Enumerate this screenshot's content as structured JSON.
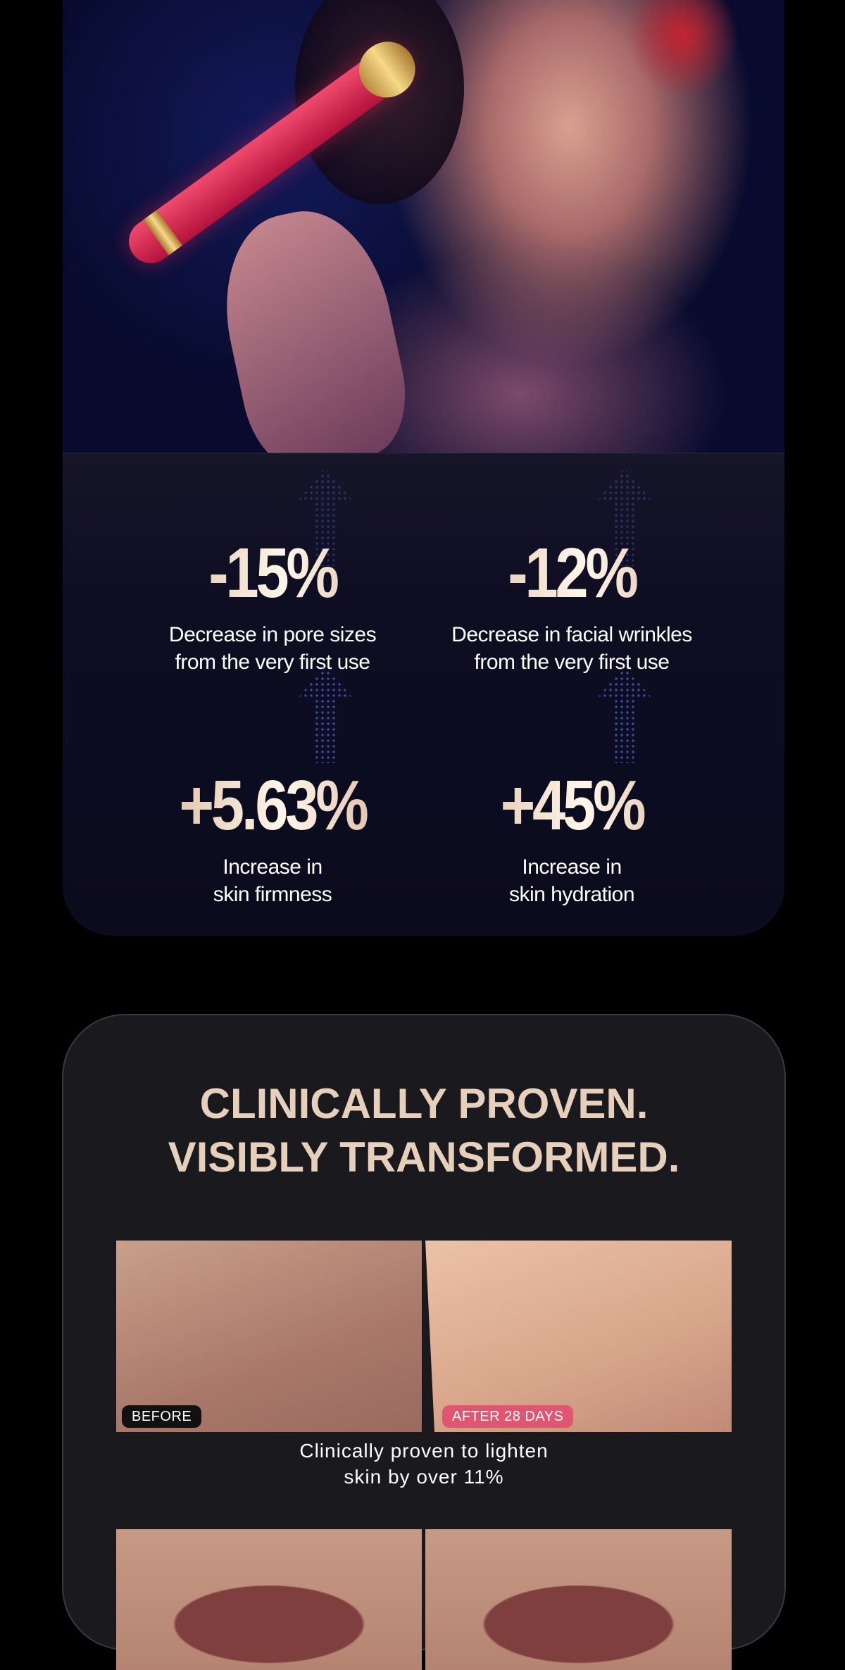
{
  "stats": [
    {
      "value": "-15%",
      "line1": "Decrease in pore sizes",
      "line2": "from the very first use"
    },
    {
      "value": "-12%",
      "line1": "Decrease in facial wrinkles",
      "line2": "from the very first use"
    },
    {
      "value": "+5.63%",
      "line1": "Increase in",
      "line2": "skin firmness"
    },
    {
      "value": "+45%",
      "line1": "Increase in",
      "line2": "skin hydration"
    }
  ],
  "clinical": {
    "title_line1": "CLINICALLY PROVEN.",
    "title_line2": "VISIBLY TRANSFORMED.",
    "before_label": "BEFORE",
    "after_label": "AFTER 28 DAYS",
    "caption_line1": "Clinically proven to lighten",
    "caption_line2": "skin by over 11%"
  },
  "colors": {
    "accent_gold": "#e6d0bb",
    "after_badge": "#e05670",
    "before_badge": "#111111",
    "card_bg": "#1a191e"
  }
}
